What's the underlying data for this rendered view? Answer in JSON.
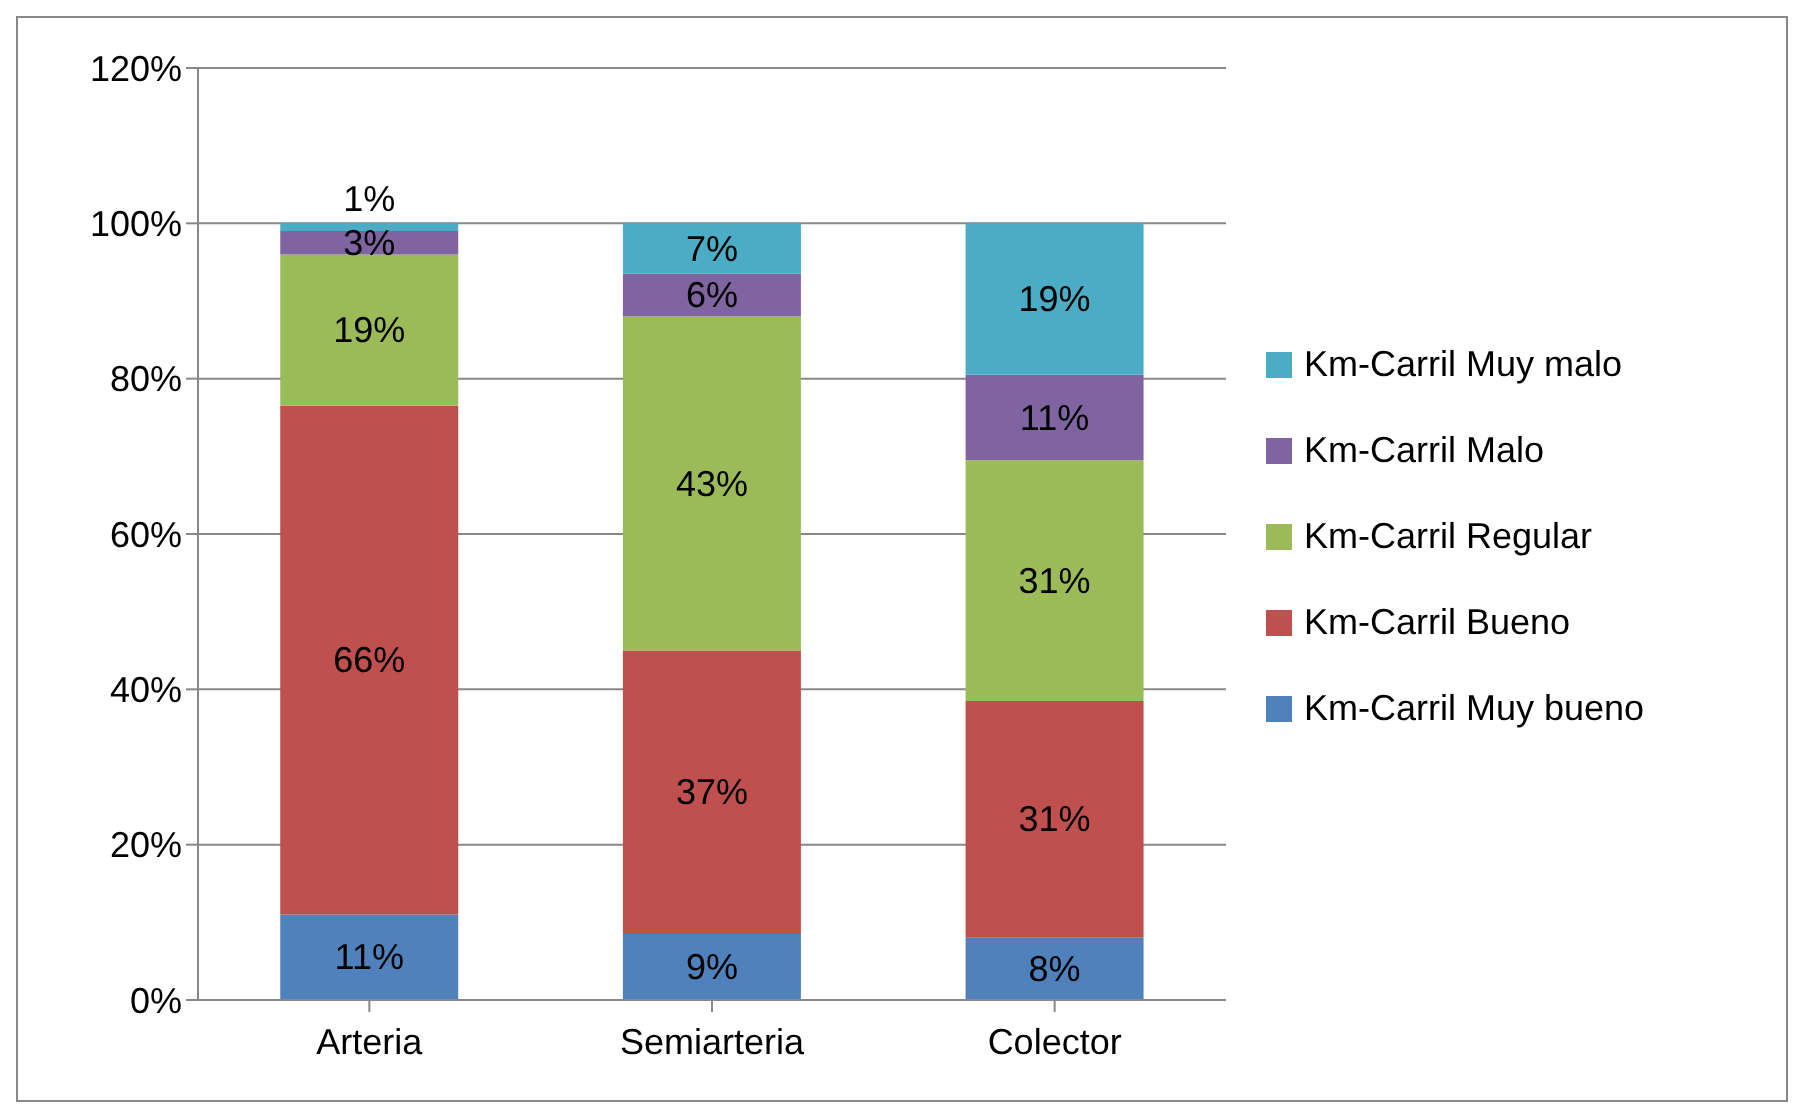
{
  "chart_data": {
    "type": "bar",
    "stacked": true,
    "categories": [
      "Arteria",
      "Semiarteria",
      "Colector"
    ],
    "series": [
      {
        "name": "Km-Carril Muy bueno",
        "color": "#4f81bd",
        "values": [
          11,
          8.5,
          8
        ],
        "value_labels": [
          "11%",
          "9%",
          "8%"
        ]
      },
      {
        "name": "Km-Carril Bueno",
        "color": "#c0504d",
        "values": [
          65.5,
          36.5,
          30.5
        ],
        "value_labels": [
          "66%",
          "37%",
          "31%"
        ]
      },
      {
        "name": "Km-Carril Regular",
        "color": "#9bbb59",
        "values": [
          19.5,
          43,
          31
        ],
        "value_labels": [
          "19%",
          "43%",
          "31%"
        ]
      },
      {
        "name": "Km-Carril Malo",
        "color": "#8064a2",
        "values": [
          3,
          5.5,
          11
        ],
        "value_labels": [
          "3%",
          "6%",
          "11%"
        ]
      },
      {
        "name": "Km-Carril Muy malo",
        "color": "#4bacc6",
        "values": [
          1,
          6.5,
          19.5
        ],
        "value_labels": [
          "1%",
          "7%",
          "19%"
        ]
      }
    ],
    "ylim": [
      0,
      120
    ],
    "yticks": [
      {
        "value": 0,
        "label": "0%"
      },
      {
        "value": 20,
        "label": "20%"
      },
      {
        "value": 40,
        "label": "40%"
      },
      {
        "value": 60,
        "label": "60%"
      },
      {
        "value": 80,
        "label": "80%"
      },
      {
        "value": 100,
        "label": "100%"
      },
      {
        "value": 120,
        "label": "120%"
      }
    ],
    "grid": "y",
    "legend": "right"
  }
}
